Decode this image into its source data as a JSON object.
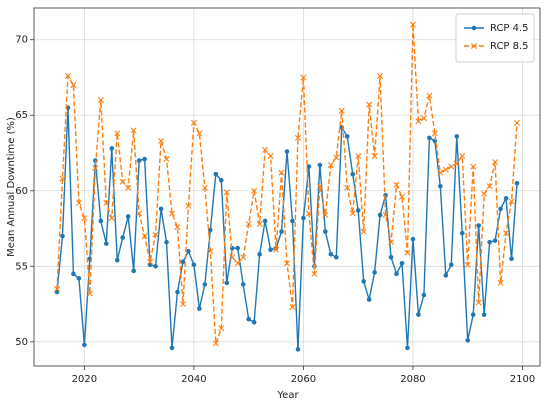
{
  "chart_data": {
    "type": "line",
    "x_label": "Year",
    "y_label": "Mean Annual Downtime (%)",
    "x": [
      2015,
      2016,
      2017,
      2018,
      2019,
      2020,
      2021,
      2022,
      2023,
      2024,
      2025,
      2026,
      2027,
      2028,
      2029,
      2030,
      2031,
      2032,
      2033,
      2034,
      2035,
      2036,
      2037,
      2038,
      2039,
      2040,
      2041,
      2042,
      2043,
      2044,
      2045,
      2046,
      2047,
      2048,
      2049,
      2050,
      2051,
      2052,
      2053,
      2054,
      2055,
      2056,
      2057,
      2058,
      2059,
      2060,
      2061,
      2062,
      2063,
      2064,
      2065,
      2066,
      2067,
      2068,
      2069,
      2070,
      2071,
      2072,
      2073,
      2074,
      2075,
      2076,
      2077,
      2078,
      2079,
      2080,
      2081,
      2082,
      2083,
      2084,
      2085,
      2086,
      2087,
      2088,
      2089,
      2090,
      2091,
      2092,
      2093,
      2094,
      2095,
      2096,
      2097,
      2098,
      2099
    ],
    "series": [
      {
        "name": "RCP 4.5",
        "color": "#1f77b4",
        "line_style": "solid",
        "marker": "circle",
        "values": [
          53.3,
          57,
          65.5,
          54.5,
          54.2,
          49.8,
          55.5,
          62,
          58,
          56.5,
          62.8,
          55.4,
          56.9,
          58.3,
          54.7,
          62,
          62.1,
          55.1,
          55,
          58.8,
          56.6,
          49.6,
          53.3,
          55.3,
          56,
          55.1,
          52.2,
          53.8,
          57.4,
          61.1,
          60.7,
          53.9,
          56.2,
          56.2,
          53.8,
          51.5,
          51.3,
          55.8,
          58,
          56.1,
          56.2,
          57.3,
          62.6,
          58,
          49.5,
          58.2,
          61.6,
          55,
          61.7,
          57.3,
          55.8,
          55.6,
          64.2,
          63.6,
          61.1,
          58.7,
          54,
          52.8,
          54.6,
          58.4,
          59.7,
          55.6,
          54.5,
          55.2,
          49.6,
          56.8,
          51.8,
          53.1,
          63.5,
          63.3,
          60.3,
          54.4,
          55.1,
          63.6,
          57.2,
          50.1,
          51.8,
          57.7,
          51.8,
          56.6,
          56.7,
          58.8,
          59.5,
          55.5,
          60.5
        ]
      },
      {
        "name": "RCP 8.5",
        "color": "#ff7f0e",
        "line_style": "dashed",
        "marker": "x",
        "values": [
          53.5,
          60.8,
          67.6,
          67,
          59.2,
          58.2,
          53.2,
          61.5,
          66,
          59.2,
          58.2,
          63.8,
          60.6,
          60.2,
          64,
          58.5,
          57,
          55.3,
          57.1,
          63.3,
          62.1,
          58.5,
          57.6,
          52.5,
          59,
          64.5,
          63.8,
          60.2,
          56,
          49.9,
          50.9,
          59.9,
          55.6,
          55.2,
          55.6,
          57.8,
          60,
          57.8,
          62.7,
          62.3,
          56.1,
          61.2,
          55.2,
          52.3,
          63.5,
          67.5,
          58.5,
          54.5,
          60.3,
          58.4,
          61.7,
          62.2,
          65.3,
          60.2,
          58.5,
          62.3,
          57.3,
          65.7,
          62.3,
          67.6,
          58.4,
          56.6,
          60.4,
          59.6,
          55.9,
          71,
          64.6,
          64.8,
          66.3,
          63.8,
          61.2,
          61.4,
          61.6,
          61.8,
          62.3,
          55.1,
          61.6,
          52.6,
          59.8,
          60.3,
          61.9,
          53.9,
          57.2,
          59.3,
          64.5
        ]
      }
    ],
    "xlim": [
      2010.8,
      2103.2
    ],
    "ylim": [
      48.4,
      72.1
    ],
    "xticks": [
      2020,
      2040,
      2060,
      2080,
      2100
    ],
    "yticks": [
      50,
      55,
      60,
      65,
      70
    ],
    "grid": true,
    "legend": "upper right"
  }
}
